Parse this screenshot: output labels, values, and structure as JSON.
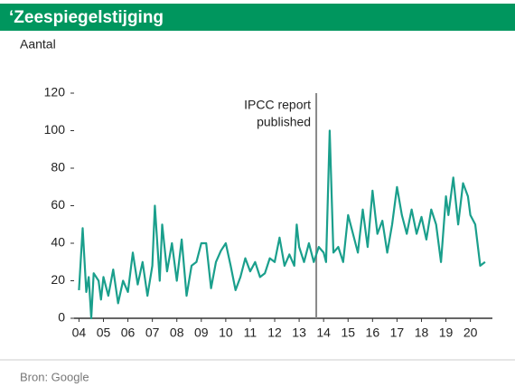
{
  "chart_data": {
    "type": "line",
    "title": "‘Zeespiegelstijging",
    "y_label": "Aantal",
    "source": "Bron: Google",
    "annotation": {
      "text_lines": [
        "IPCC report",
        "published"
      ],
      "x": 13.7
    },
    "x": [
      4.0,
      4.15,
      4.3,
      4.4,
      4.5,
      4.6,
      4.8,
      4.9,
      5.0,
      5.2,
      5.4,
      5.6,
      5.8,
      6.0,
      6.2,
      6.4,
      6.6,
      6.8,
      7.0,
      7.1,
      7.3,
      7.4,
      7.6,
      7.8,
      8.0,
      8.2,
      8.4,
      8.6,
      8.8,
      9.0,
      9.2,
      9.4,
      9.6,
      9.8,
      10.0,
      10.2,
      10.4,
      10.6,
      10.8,
      11.0,
      11.2,
      11.4,
      11.6,
      11.8,
      12.0,
      12.2,
      12.4,
      12.6,
      12.8,
      12.9,
      13.0,
      13.2,
      13.4,
      13.6,
      13.8,
      14.0,
      14.1,
      14.25,
      14.4,
      14.6,
      14.8,
      15.0,
      15.2,
      15.4,
      15.6,
      15.8,
      16.0,
      16.2,
      16.4,
      16.6,
      16.8,
      17.0,
      17.2,
      17.4,
      17.6,
      17.8,
      18.0,
      18.2,
      18.4,
      18.6,
      18.8,
      19.0,
      19.1,
      19.3,
      19.5,
      19.7,
      19.9,
      20.0,
      20.2,
      20.4,
      20.6
    ],
    "series": [
      {
        "name": "Zeespiegelstijging",
        "color": "#1a9f8c",
        "values": [
          15,
          48,
          14,
          22,
          0,
          24,
          20,
          10,
          22,
          12,
          26,
          8,
          20,
          14,
          35,
          18,
          30,
          12,
          28,
          60,
          20,
          50,
          25,
          40,
          20,
          42,
          12,
          28,
          30,
          40,
          40,
          16,
          30,
          36,
          40,
          28,
          15,
          22,
          32,
          25,
          30,
          22,
          24,
          32,
          30,
          43,
          28,
          34,
          28,
          50,
          38,
          30,
          40,
          30,
          38,
          35,
          30,
          100,
          35,
          38,
          30,
          55,
          45,
          35,
          58,
          38,
          68,
          45,
          52,
          35,
          50,
          70,
          55,
          45,
          58,
          45,
          54,
          42,
          58,
          50,
          30,
          65,
          55,
          75,
          50,
          72,
          65,
          55,
          50,
          28,
          30
        ]
      }
    ],
    "xlim": [
      3.8,
      20.9
    ],
    "ylim": [
      0,
      120
    ],
    "xticks": [
      {
        "value": 4,
        "label": "04"
      },
      {
        "value": 5,
        "label": "05"
      },
      {
        "value": 6,
        "label": "06"
      },
      {
        "value": 7,
        "label": "07"
      },
      {
        "value": 8,
        "label": "08"
      },
      {
        "value": 9,
        "label": "09"
      },
      10,
      11,
      12,
      13,
      14,
      15,
      16,
      17,
      18,
      19,
      20
    ],
    "yticks": [
      0,
      20,
      40,
      60,
      80,
      100,
      120
    ]
  }
}
